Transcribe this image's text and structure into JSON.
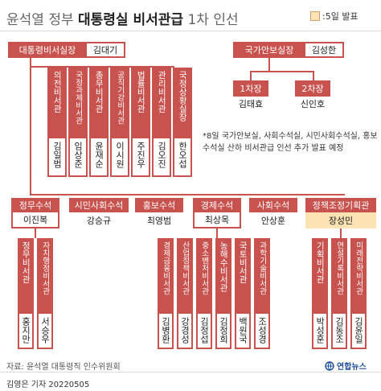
{
  "title": {
    "prefix": "윤석열 정부 ",
    "main": "대통령실 비서관급",
    "suffix": " 1차 인선"
  },
  "legend": {
    "text": ":5일 발표"
  },
  "chief_secretary": {
    "label": "대통령비서실장",
    "name": "김대기"
  },
  "national_security": {
    "label": "국가안보실장",
    "name": "김성한",
    "deputies": [
      {
        "label": "1차장",
        "name": "김태효"
      },
      {
        "label": "2차장",
        "name": "신인호"
      }
    ]
  },
  "direct_secretaries": [
    {
      "title": "의전비서관",
      "name": "김일범"
    },
    {
      "title": "국정과제비서관",
      "name": "임상준"
    },
    {
      "title": "총무비서관",
      "name": "윤재순"
    },
    {
      "title": "공직기강비서관",
      "name": "이시원"
    },
    {
      "title": "법률비서관",
      "name": "주진우"
    },
    {
      "title": "관리비서관",
      "name": "김오진"
    },
    {
      "title": "국정상황실장",
      "name": "한오섭"
    }
  ],
  "note": "*8일 국가안보실, 사회수석실, 시민사회수석실, 홍보수석실 산하 비서관급 인선 추가 발표 예정",
  "senior_secretaries": [
    {
      "label": "정무수석",
      "name": "이진복"
    },
    {
      "label": "시민사회수석",
      "name": "강승규"
    },
    {
      "label": "홍보수석",
      "name": "최영범"
    },
    {
      "label": "경제수석",
      "name": "최상목"
    },
    {
      "label": "사회수석",
      "name": "안상훈"
    },
    {
      "label": "정책조정기획관",
      "name": "장성민"
    }
  ],
  "political_secretaries": [
    {
      "title": "정무비서관",
      "name": "홍지만"
    },
    {
      "title": "자치행정비서관",
      "name": "서승우"
    }
  ],
  "economic_secretaries": [
    {
      "title": "경제금융비서관",
      "name": "김병환"
    },
    {
      "title": "산업정책비서관",
      "name": "강경성"
    },
    {
      "title": "중소벤처비서관",
      "name": "김정섭"
    },
    {
      "title": "농해수비서관",
      "name": "김정희"
    },
    {
      "title": "국토비서관",
      "name": "백원국"
    },
    {
      "title": "과학기술비서관",
      "name": "조성경"
    }
  ],
  "policy_secretaries": [
    {
      "title": "기획비서관",
      "name": "박성훈"
    },
    {
      "title": "연설기록비서관",
      "name": "김동조"
    },
    {
      "title": "미래전략비서관",
      "name": "김윤일"
    }
  ],
  "source": "자료: 윤석열 대통령직 인수위원회",
  "brand": "연합뉴스",
  "credit": "김영은 기자  20220505",
  "colors": {
    "accent": "#c8524d",
    "highlight": "#fbe3b4"
  }
}
